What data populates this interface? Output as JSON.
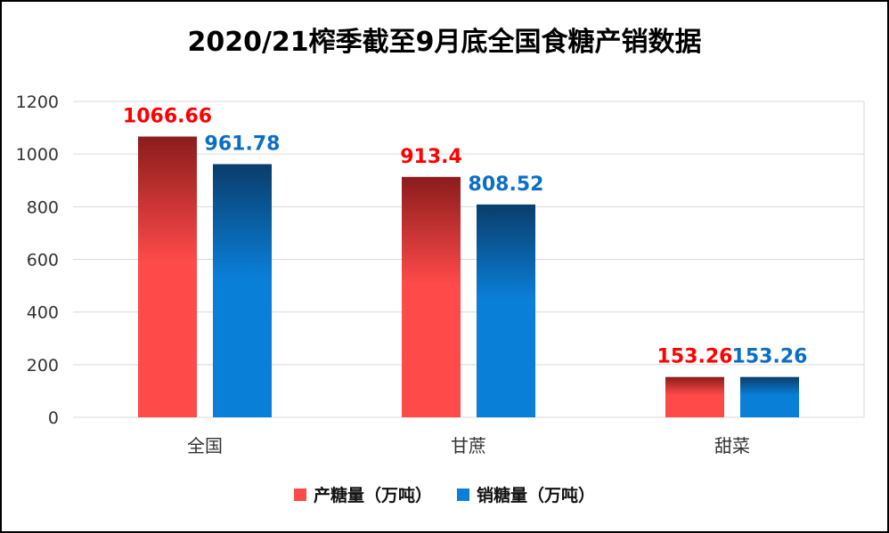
{
  "chart_data": {
    "type": "bar",
    "title": "2020/21榨季截至9月底全国食糖产销数据",
    "categories": [
      "全国",
      "甘蔗",
      "甜菜"
    ],
    "series": [
      {
        "name": "产糖量（万吨）",
        "values": [
          1066.66,
          913.4,
          153.26
        ],
        "labels": [
          "1066.66",
          "913.4",
          "153.26"
        ],
        "color": "#ff4a4a",
        "dark": "#8b1c1c",
        "label_color": "#ff0000"
      },
      {
        "name": "销糖量（万吨）",
        "values": [
          961.78,
          808.52,
          153.26
        ],
        "labels": [
          "961.78",
          "808.52",
          "153.26"
        ],
        "color": "#0a7fd8",
        "dark": "#0a3d6b",
        "label_color": "#0a6fc4"
      }
    ],
    "yticks": [
      "0",
      "200",
      "400",
      "600",
      "800",
      "1000",
      "1200"
    ],
    "ylim": [
      0,
      1200
    ],
    "grid": true,
    "legend_position": "bottom"
  }
}
